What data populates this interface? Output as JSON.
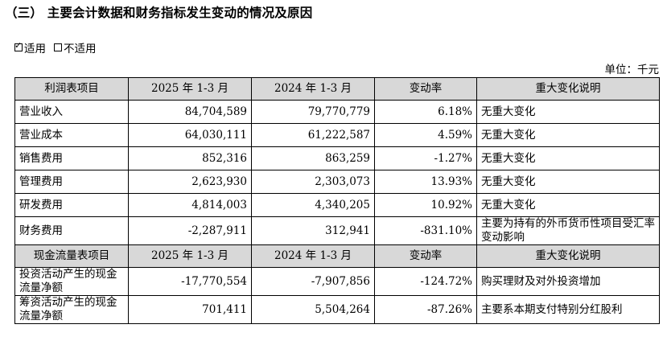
{
  "heading": "（三） 主要会计数据和财务指标发生变动的情况及原因",
  "applicability": {
    "checked_mark": "☑",
    "applicable_label": "适用",
    "unchecked_mark": "□",
    "not_applicable_label": "不适用"
  },
  "unit_label": "单位：千元",
  "income_header": [
    "利润表项目",
    "2025 年 1-3 月",
    "2024 年 1-3 月",
    "变动率",
    "重大变化说明"
  ],
  "income_rows": [
    {
      "item": "营业收入",
      "cur": "84,704,589",
      "prev": "79,770,779",
      "rate": "6.18%",
      "note": "无重大变化"
    },
    {
      "item": "营业成本",
      "cur": "64,030,111",
      "prev": "61,222,587",
      "rate": "4.59%",
      "note": "无重大变化"
    },
    {
      "item": "销售费用",
      "cur": "852,316",
      "prev": "863,259",
      "rate": "-1.27%",
      "note": "无重大变化"
    },
    {
      "item": "管理费用",
      "cur": "2,623,930",
      "prev": "2,303,073",
      "rate": "13.93%",
      "note": "无重大变化"
    },
    {
      "item": "研发费用",
      "cur": "4,814,003",
      "prev": "4,340,205",
      "rate": "10.92%",
      "note": "无重大变化"
    },
    {
      "item": "财务费用",
      "cur": "-2,287,911",
      "prev": "312,941",
      "rate": "-831.10%",
      "note": "主要为持有的外币货币性项目受汇率变动影响"
    }
  ],
  "cash_header": [
    "现金流量表项目",
    "2025 年 1-3 月",
    "2024 年 1-3 月",
    "变动率",
    "重大变化说明"
  ],
  "cash_rows": [
    {
      "item": "投资活动产生的现金流量净额",
      "cur": "-17,770,554",
      "prev": "-7,907,856",
      "rate": "-124.72%",
      "note": "购买理财及对外投资增加"
    },
    {
      "item": "筹资活动产生的现金流量净额",
      "cur": "701,411",
      "prev": "5,504,264",
      "rate": "-87.26%",
      "note": "主要系本期支付特别分红股利"
    }
  ]
}
